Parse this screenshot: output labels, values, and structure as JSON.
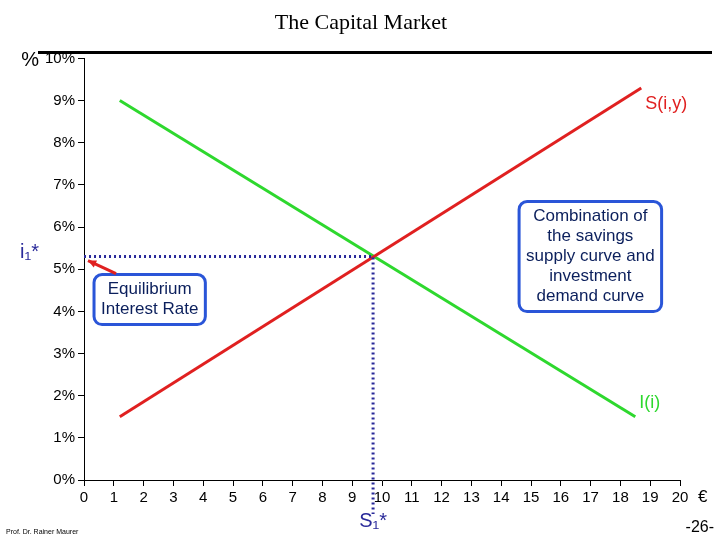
{
  "chart_data": {
    "type": "line",
    "title": "The Capital Market",
    "y_label": "%",
    "x_label": "€",
    "xlim": [
      0,
      20
    ],
    "xticks": [
      0,
      1,
      2,
      3,
      4,
      5,
      6,
      7,
      8,
      9,
      10,
      11,
      12,
      13,
      14,
      15,
      16,
      17,
      18,
      19,
      20
    ],
    "ylim": [
      0,
      10
    ],
    "yticks": [
      {
        "value": 0,
        "label": "0%"
      },
      {
        "value": 1,
        "label": "1%"
      },
      {
        "value": 2,
        "label": "2%"
      },
      {
        "value": 3,
        "label": "3%"
      },
      {
        "value": 4,
        "label": "4%"
      },
      {
        "value": 5,
        "label": "5%"
      },
      {
        "value": 6,
        "label": "6%"
      },
      {
        "value": 7,
        "label": "7%"
      },
      {
        "value": 8,
        "label": "8%"
      },
      {
        "value": 9,
        "label": "9%"
      },
      {
        "value": 10,
        "label": "10%"
      }
    ],
    "grid": false,
    "series": [
      {
        "name": "S(i,y)",
        "color": "#e02020",
        "x": [
          1.2,
          18.7
        ],
        "values": [
          1.5,
          9.3
        ]
      },
      {
        "name": "I(i)",
        "color": "#2ed82e",
        "x": [
          1.2,
          18.5
        ],
        "values": [
          9.0,
          1.5
        ]
      }
    ],
    "equilibrium": {
      "x": 9.7,
      "y": 5.3,
      "x_label": "S₁*",
      "y_label": "i₁*",
      "color": "#2a2a9a"
    },
    "equilibrium_note": "Equilibrium Interest Rate",
    "note": "Combination of the savings supply curve and investment demand curve",
    "footer": "Prof. Dr. Rainer Maurer",
    "page": "-26-"
  }
}
